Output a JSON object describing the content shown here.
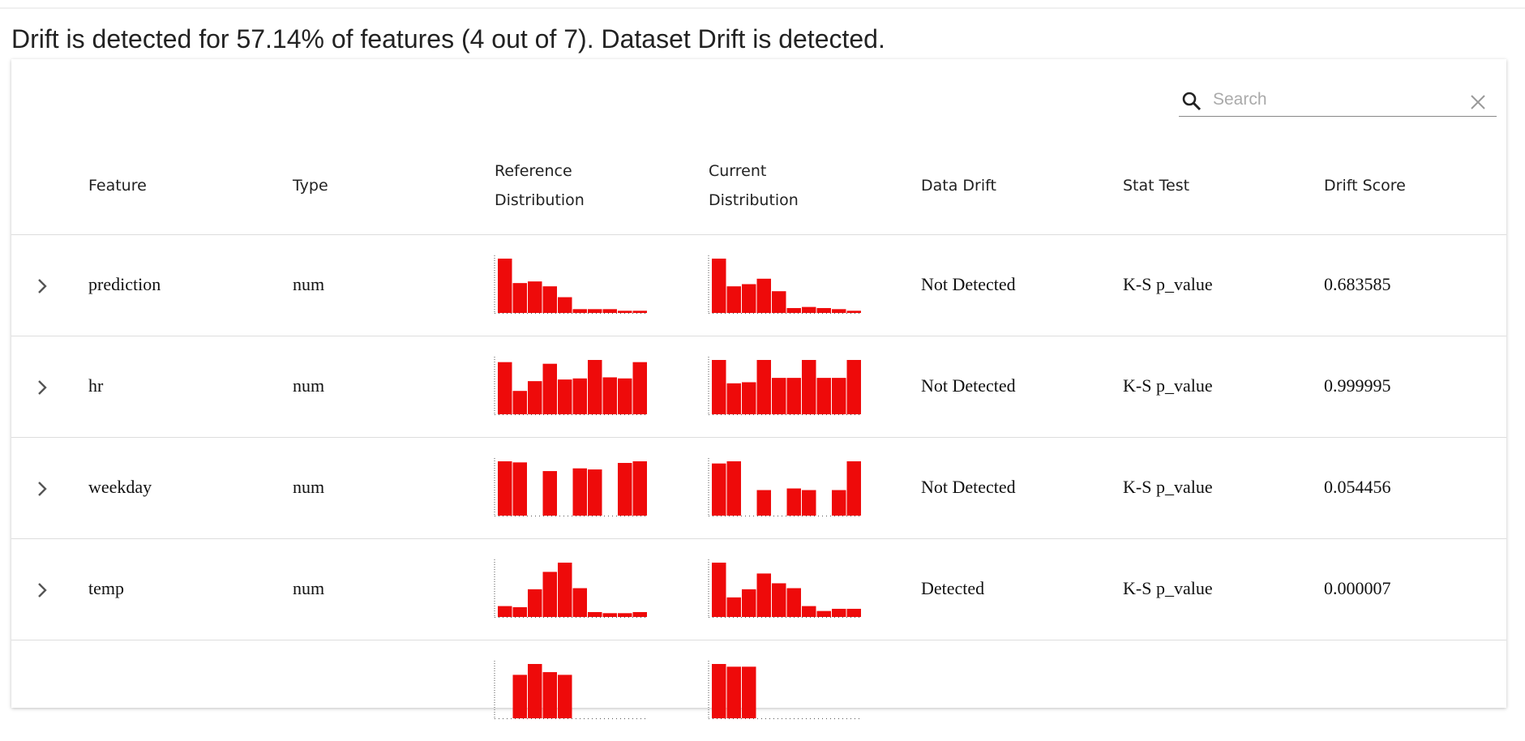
{
  "title": "Drift is detected for 57.14% of features (4 out of 7). Dataset Drift is detected.",
  "search": {
    "placeholder": "Search"
  },
  "table": {
    "headers": [
      "Feature",
      "Type",
      "Reference Distribution",
      "Current Distribution",
      "Data Drift",
      "Stat Test",
      "Drift Score"
    ],
    "rows": [
      {
        "feature": "prediction",
        "type": "num",
        "reference": [
          100,
          55,
          58,
          49,
          29,
          7,
          7,
          7,
          4,
          4
        ],
        "current": [
          100,
          49,
          53,
          63,
          40,
          9,
          11,
          9,
          7,
          4
        ],
        "data_drift": "Not Detected",
        "stat_test": "K-S p_value",
        "drift_score": "0.683585"
      },
      {
        "feature": "hr",
        "type": "num",
        "reference": [
          96,
          43,
          61,
          93,
          64,
          66,
          100,
          68,
          66,
          96
        ],
        "current": [
          100,
          57,
          59,
          100,
          67,
          67,
          100,
          67,
          67,
          100
        ],
        "data_drift": "Not Detected",
        "stat_test": "K-S p_value",
        "drift_score": "0.999995"
      },
      {
        "feature": "weekday",
        "type": "num",
        "reference": [
          100,
          98,
          0,
          82,
          0,
          87,
          85,
          0,
          97,
          100
        ],
        "current": [
          96,
          100,
          0,
          47,
          0,
          50,
          47,
          0,
          47,
          100
        ],
        "data_drift": "Not Detected",
        "stat_test": "K-S p_value",
        "drift_score": "0.054456"
      },
      {
        "feature": "temp",
        "type": "num",
        "reference": [
          20,
          18,
          51,
          83,
          100,
          53,
          9,
          7,
          7,
          9
        ],
        "current": [
          100,
          36,
          51,
          80,
          62,
          53,
          20,
          11,
          15,
          15
        ],
        "data_drift": "Detected",
        "stat_test": "K-S p_value",
        "drift_score": "0.000007"
      },
      {
        "reference": [
          0,
          80,
          100,
          85,
          80
        ],
        "current": [
          100,
          95,
          95
        ]
      }
    ]
  }
}
